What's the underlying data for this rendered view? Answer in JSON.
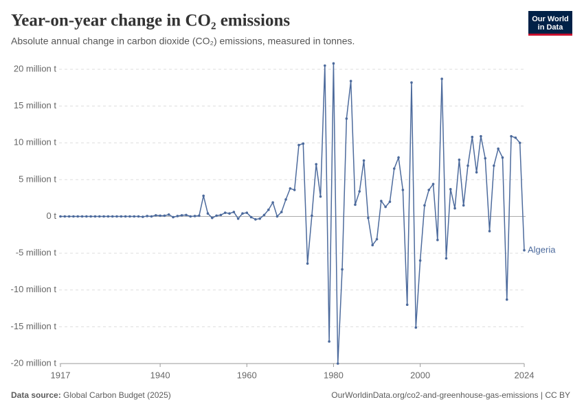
{
  "chart_data": {
    "type": "line",
    "title": "Year-on-year change in CO₂ emissions",
    "subtitle": "Absolute annual change in carbon dioxide (CO₂) emissions, measured in tonnes.",
    "logo": [
      "Our World",
      "in Data"
    ],
    "source_label": "Data source:",
    "source": "Global Carbon Budget (2025)",
    "footer_right": "OurWorldinData.org/co2-and-greenhouse-gas-emissions | CC BY",
    "x": [
      1917,
      1918,
      1919,
      1920,
      1921,
      1922,
      1923,
      1924,
      1925,
      1926,
      1927,
      1928,
      1929,
      1930,
      1931,
      1932,
      1933,
      1934,
      1935,
      1936,
      1937,
      1938,
      1939,
      1940,
      1941,
      1942,
      1943,
      1944,
      1945,
      1946,
      1947,
      1948,
      1949,
      1950,
      1951,
      1952,
      1953,
      1954,
      1955,
      1956,
      1957,
      1958,
      1959,
      1960,
      1961,
      1962,
      1963,
      1964,
      1965,
      1966,
      1967,
      1968,
      1969,
      1970,
      1971,
      1972,
      1973,
      1974,
      1975,
      1976,
      1977,
      1978,
      1979,
      1980,
      1981,
      1982,
      1983,
      1984,
      1985,
      1986,
      1987,
      1988,
      1989,
      1990,
      1991,
      1992,
      1993,
      1994,
      1995,
      1996,
      1997,
      1998,
      1999,
      2000,
      2001,
      2002,
      2003,
      2004,
      2005,
      2006,
      2007,
      2008,
      2009,
      2010,
      2011,
      2012,
      2013,
      2014,
      2015,
      2016,
      2017,
      2018,
      2019,
      2020,
      2021,
      2022,
      2023,
      2024
    ],
    "series": [
      {
        "name": "Algeria",
        "color": "#4c6a9c",
        "values": [
          0,
          0,
          0,
          0,
          0,
          0,
          0,
          0,
          0,
          0,
          0,
          0,
          0,
          0,
          0,
          0,
          0,
          0,
          0,
          -50000,
          50000,
          0,
          150000,
          100000,
          100000,
          250000,
          -100000,
          50000,
          150000,
          200000,
          0,
          50000,
          100000,
          2800000,
          400000,
          -200000,
          100000,
          200000,
          500000,
          400000,
          600000,
          -300000,
          400000,
          500000,
          -100000,
          -400000,
          -300000,
          200000,
          900000,
          1900000,
          0,
          600000,
          2300000,
          3800000,
          3600000,
          9700000,
          9900000,
          -6400000,
          100000,
          7100000,
          2700000,
          20500000,
          -17000000,
          20800000,
          -20000000,
          -7200000,
          13300000,
          18400000,
          1600000,
          3400000,
          7600000,
          -200000,
          -3900000,
          -3100000,
          2100000,
          1300000,
          2000000,
          6500000,
          8000000,
          3600000,
          -12000000,
          18200000,
          -15100000,
          -6000000,
          1500000,
          3600000,
          4400000,
          -3200000,
          18700000,
          -5700000,
          3700000,
          1100000,
          7700000,
          1500000,
          6900000,
          10800000,
          6000000,
          10900000,
          7900000,
          -2000000,
          6900000,
          9200000,
          8000000,
          -11300000,
          10900000,
          10700000,
          10000000,
          -4600000
        ]
      }
    ],
    "xlim": [
      1917,
      2024
    ],
    "xticks": [
      1917,
      1940,
      1960,
      1980,
      2000,
      2024
    ],
    "ylim": [
      -20000000,
      21000000
    ],
    "yticks": [
      {
        "value": -20000000,
        "label": "-20 million t"
      },
      {
        "value": -15000000,
        "label": "-15 million t"
      },
      {
        "value": -10000000,
        "label": "-10 million t"
      },
      {
        "value": -5000000,
        "label": "-5 million t"
      },
      {
        "value": 0,
        "label": "0 t"
      },
      {
        "value": 5000000,
        "label": "5 million t"
      },
      {
        "value": 10000000,
        "label": "10 million t"
      },
      {
        "value": 15000000,
        "label": "15 million t"
      },
      {
        "value": 20000000,
        "label": "20 million t"
      }
    ],
    "grid": true
  }
}
